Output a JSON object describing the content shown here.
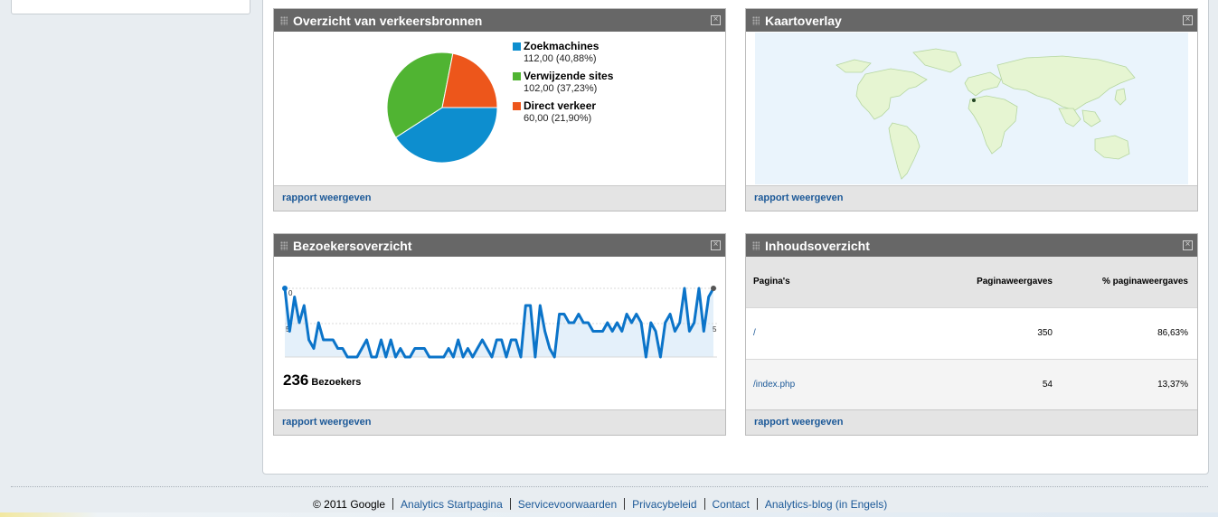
{
  "widgets": {
    "traffic_sources": {
      "title": "Overzicht van verkeersbronnen",
      "footer_link": "rapport weergeven",
      "legend": [
        {
          "name": "Zoekmachines",
          "value": "112,00 (40,88%)",
          "color": "#0d8ecf"
        },
        {
          "name": "Verwijzende sites",
          "value": "102,00 (37,23%)",
          "color": "#50b432"
        },
        {
          "name": "Direct verkeer",
          "value": "60,00 (21,90%)",
          "color": "#ed561b"
        }
      ]
    },
    "map_overlay": {
      "title": "Kaartoverlay",
      "footer_link": "rapport weergeven"
    },
    "visitors": {
      "title": "Bezoekersoverzicht",
      "axis_top_label": "0",
      "axis_mid_left_label": "5",
      "axis_mid_right_label": "5",
      "count": "236",
      "count_label": "Bezoekers",
      "footer_link": "rapport weergeven"
    },
    "content": {
      "title": "Inhoudsoverzicht",
      "columns": [
        "Pagina's",
        "Paginaweergaves",
        "% paginaweergaves"
      ],
      "rows": [
        {
          "page": "/",
          "views": "350",
          "percent": "86,63%"
        },
        {
          "page": "/index.php",
          "views": "54",
          "percent": "13,37%"
        }
      ],
      "footer_link": "rapport weergeven"
    }
  },
  "chart_data": [
    {
      "type": "pie",
      "categories": [
        "Zoekmachines",
        "Verwijzende sites",
        "Direct verkeer"
      ],
      "values": [
        112,
        102,
        60
      ],
      "colors": [
        "#0d8ecf",
        "#50b432",
        "#ed561b"
      ]
    },
    {
      "type": "area",
      "series": [
        {
          "values": [
            9,
            4,
            8,
            5,
            7,
            3,
            2,
            5,
            3,
            3,
            3,
            2,
            2,
            1,
            1,
            1,
            2,
            3,
            1,
            1,
            3,
            1,
            3,
            1,
            2,
            1,
            1,
            2,
            2,
            2,
            1,
            1,
            1,
            1,
            2,
            1,
            3,
            1,
            2,
            1,
            2,
            3,
            2,
            1,
            3,
            3,
            1,
            3,
            3,
            1,
            7,
            7,
            1,
            7,
            4,
            2,
            1,
            6,
            6,
            5,
            5,
            6,
            5,
            5,
            4,
            4,
            4,
            5,
            4,
            5,
            4,
            6,
            5,
            6,
            5,
            1,
            5,
            4,
            1,
            5,
            6,
            4,
            5,
            9,
            4,
            5,
            9,
            4,
            8,
            9
          ]
        }
      ],
      "color": "#0b74c9"
    }
  ],
  "footer": {
    "copyright": "© 2011 Google",
    "links": [
      "Analytics Startpagina",
      "Servicevoorwaarden",
      "Privacybeleid",
      "Contact",
      "Analytics-blog (in Engels)"
    ]
  }
}
